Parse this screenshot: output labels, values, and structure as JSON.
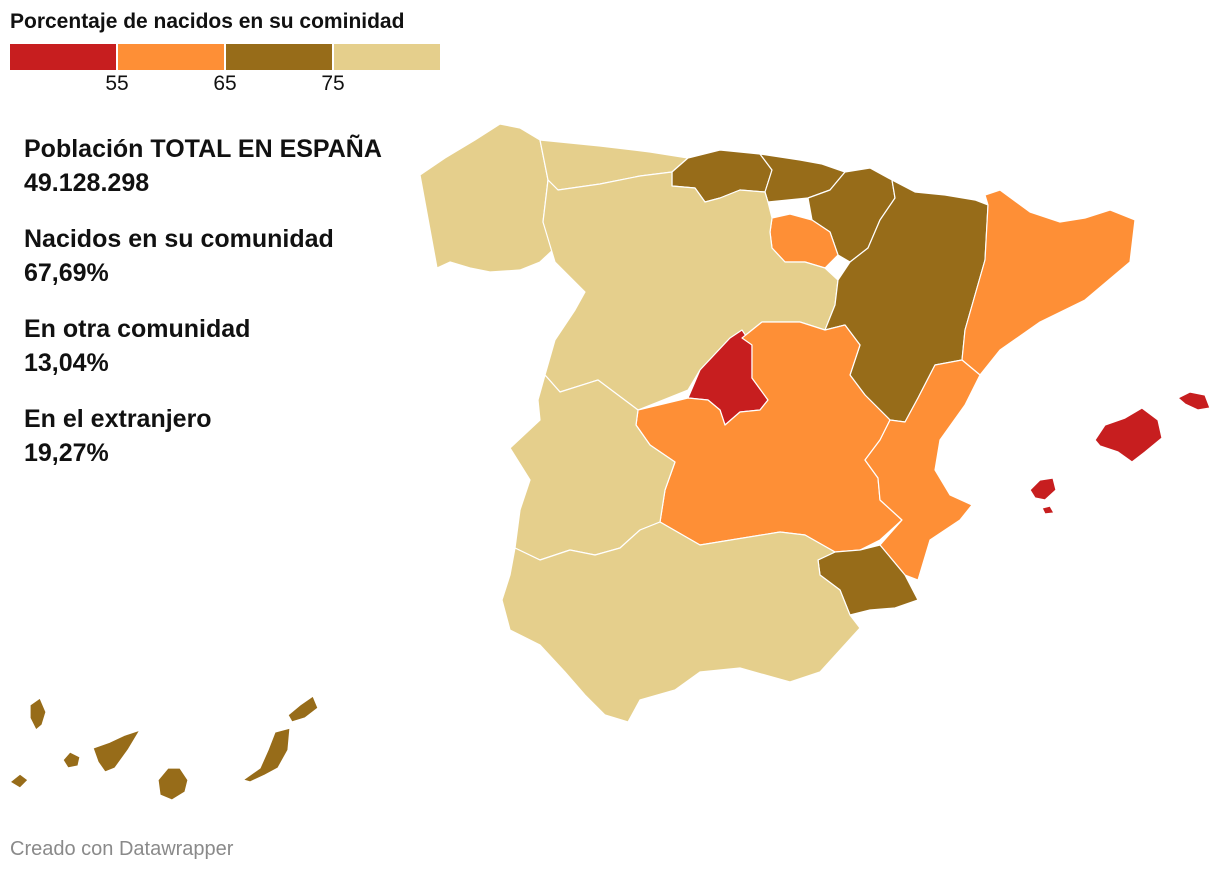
{
  "legend": {
    "title": "Porcentaje de nacidos en su cominidad",
    "colors": [
      "#c71e1f",
      "#fe8f36",
      "#976c19",
      "#e5cf8c"
    ],
    "ticks": [
      "55",
      "65",
      "75"
    ]
  },
  "stats": [
    {
      "label": "Población TOTAL EN ESPAÑA",
      "value": "49.128.298"
    },
    {
      "label": "Nacidos en su comunidad",
      "value": "67,69%"
    },
    {
      "label": "En otra comunidad",
      "value": "13,04%"
    },
    {
      "label": "En el extranjero",
      "value": "19,27%"
    }
  ],
  "footer": "Creado con Datawrapper"
}
